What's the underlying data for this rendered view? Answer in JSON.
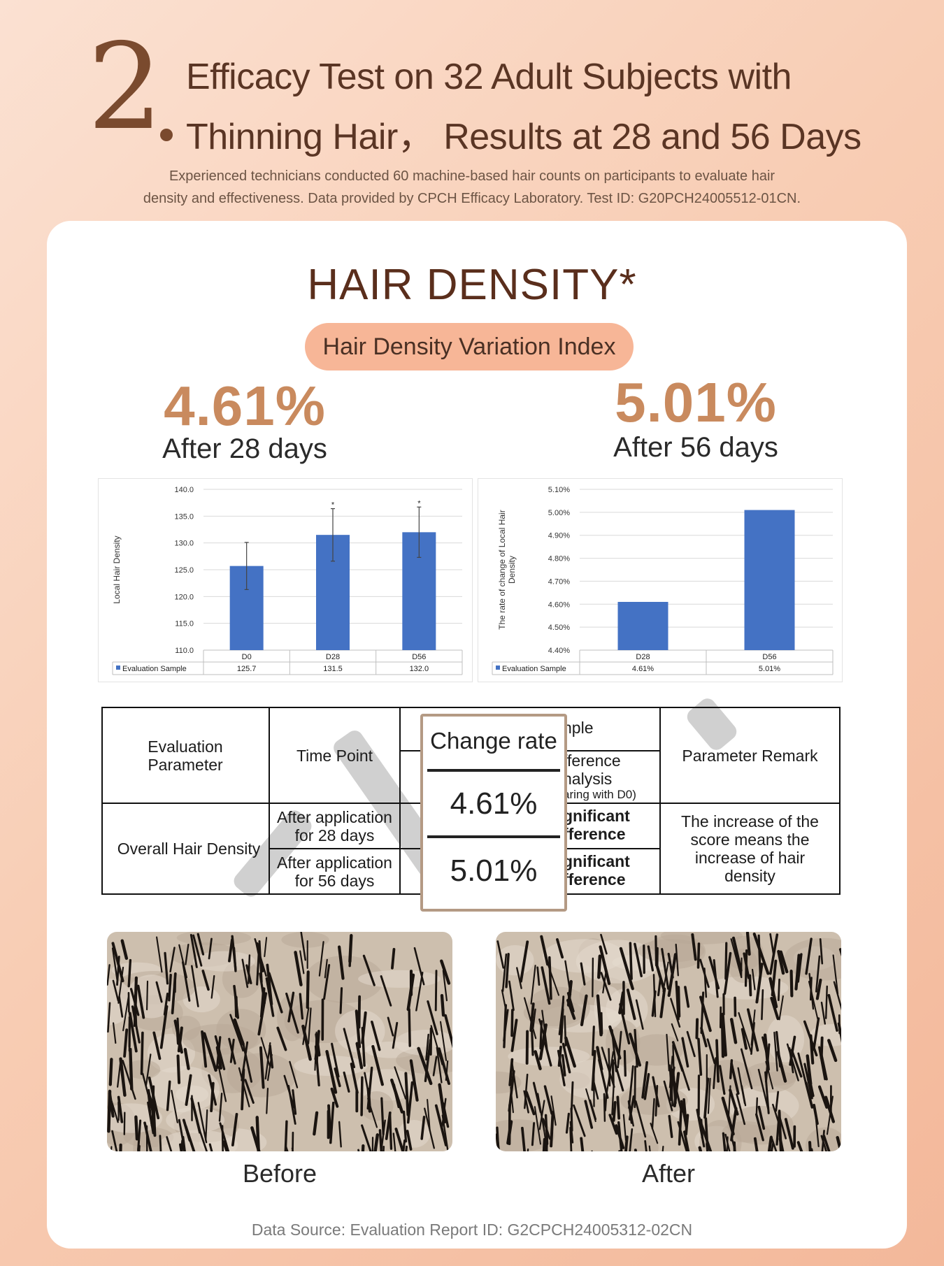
{
  "header": {
    "number": "2",
    "title_line1": "Efficacy Test on 32 Adult Subjects with",
    "title_line2": "Thinning Hair， Results at 28 and 56 Days",
    "subtitle_line1": "Experienced technicians conducted 60 machine-based hair counts on participants to evaluate hair",
    "subtitle_line2": "density and effectiveness. Data provided by CPCH Efficacy Laboratory. Test ID: G20PCH24005512-01CN."
  },
  "section": {
    "title": "HAIR DENSITY*",
    "pill": "Hair Density Variation Index"
  },
  "highlights": [
    {
      "value": "4.61%",
      "label": "After 28 days"
    },
    {
      "value": "5.01%",
      "label": "After 56 days"
    }
  ],
  "chart_data": [
    {
      "type": "bar",
      "ylabel": "Local Hair Density",
      "xlabel": "",
      "ylim": [
        110.0,
        140.0
      ],
      "ytick_labels": [
        "110.0",
        "115.0",
        "120.0",
        "125.0",
        "130.0",
        "135.0",
        "140.0"
      ],
      "categories": [
        "D0",
        "D28",
        "D56"
      ],
      "series": [
        {
          "name": "Evaluation Sample",
          "values": [
            125.7,
            131.5,
            132.0
          ],
          "labels": [
            "125.7",
            "131.5",
            "132.0"
          ]
        }
      ],
      "error_upper": [
        130.1,
        136.4,
        136.7
      ],
      "error_lower": [
        121.3,
        126.6,
        127.3
      ],
      "significance": [
        "",
        "*",
        "*"
      ],
      "color": "#4472c4",
      "grid": true,
      "legend": "data-table-bottom"
    },
    {
      "type": "bar",
      "ylabel": "The rate of change of Local Hair Density",
      "xlabel": "",
      "ylim": [
        4.4,
        5.1
      ],
      "ytick_labels": [
        "4.40%",
        "4.50%",
        "4.60%",
        "4.70%",
        "4.80%",
        "4.90%",
        "5.00%",
        "5.10%"
      ],
      "categories": [
        "D28",
        "D56"
      ],
      "series": [
        {
          "name": "Evaluation Sample",
          "values": [
            4.61,
            5.01
          ],
          "labels": [
            "4.61%",
            "5.01%"
          ]
        }
      ],
      "color": "#4472c4",
      "grid": true,
      "legend": "data-table-bottom"
    }
  ],
  "table": {
    "header": {
      "param": "Evaluation Parameter",
      "time": "Time Point",
      "sample": "nple",
      "diff1": "fference",
      "diff2": "nalysis",
      "diff3": "aring with D0)",
      "remark": "Parameter Remark"
    },
    "param_value": "Overall Hair Density",
    "rows": [
      {
        "time": "After application for 28 days",
        "sig1": "gnificant",
        "sig2": "fference"
      },
      {
        "time": "After application for 56 days",
        "sig1": "gnificant",
        "sig2": "fference"
      }
    ],
    "remark_value": "The increase of the score means the increase of hair density"
  },
  "change_rate": {
    "label": "Change rate",
    "values": [
      "4.61%",
      "5.01%"
    ]
  },
  "photos": {
    "before": "Before",
    "after": "After"
  },
  "footer": {
    "source": "Data Source: Evaluation Report ID: G2CPCH24005312-02CN"
  }
}
